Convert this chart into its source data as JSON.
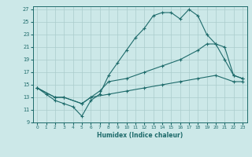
{
  "title": "",
  "xlabel": "Humidex (Indice chaleur)",
  "bg_color": "#cce8e8",
  "line_color": "#1e6b6b",
  "grid_color": "#aacccc",
  "xlim": [
    -0.5,
    23.5
  ],
  "ylim": [
    9,
    27.5
  ],
  "yticks": [
    9,
    11,
    13,
    15,
    17,
    19,
    21,
    23,
    25,
    27
  ],
  "xticks": [
    0,
    1,
    2,
    3,
    4,
    5,
    6,
    7,
    8,
    9,
    10,
    11,
    12,
    13,
    14,
    15,
    16,
    17,
    18,
    19,
    20,
    21,
    22,
    23
  ],
  "line1_x": [
    0,
    1,
    2,
    3,
    4,
    5,
    6,
    7,
    8,
    9,
    10,
    11,
    12,
    13,
    14,
    15,
    16,
    17,
    18,
    19,
    20,
    21,
    22,
    23
  ],
  "line1_y": [
    14.5,
    13.5,
    12.5,
    12.0,
    11.5,
    10.0,
    12.5,
    13.5,
    16.5,
    18.5,
    20.5,
    22.5,
    24.0,
    26.0,
    26.5,
    26.5,
    25.5,
    27.0,
    26.0,
    23.0,
    21.5,
    19.0,
    16.5,
    16.0
  ],
  "line2_x": [
    0,
    2,
    3,
    5,
    6,
    7,
    8,
    10,
    12,
    14,
    16,
    18,
    19,
    20,
    21,
    22,
    23
  ],
  "line2_y": [
    14.5,
    13.0,
    13.0,
    12.0,
    13.0,
    14.0,
    15.5,
    16.0,
    17.0,
    18.0,
    19.0,
    20.5,
    21.5,
    21.5,
    21.0,
    16.5,
    16.0
  ],
  "line3_x": [
    0,
    2,
    3,
    5,
    6,
    8,
    10,
    12,
    14,
    16,
    18,
    20,
    22,
    23
  ],
  "line3_y": [
    14.5,
    13.0,
    13.0,
    12.0,
    13.0,
    13.5,
    14.0,
    14.5,
    15.0,
    15.5,
    16.0,
    16.5,
    15.5,
    15.5
  ]
}
